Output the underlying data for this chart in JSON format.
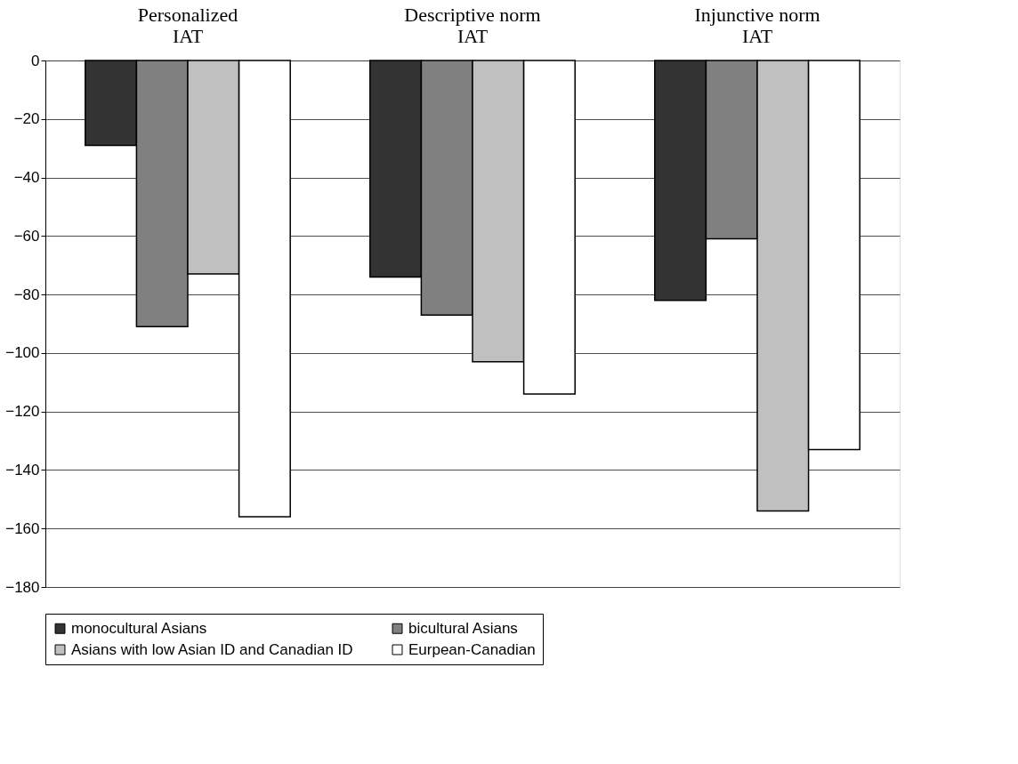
{
  "chart_data": {
    "type": "bar",
    "categories": [
      "Personalized IAT",
      "Descriptive norm IAT",
      "Injunctive norm IAT"
    ],
    "series": [
      {
        "name": "monocultural Asians",
        "color": "#333333",
        "values": [
          -29,
          -74,
          -82
        ]
      },
      {
        "name": "bicultural Asians",
        "color": "#808080",
        "values": [
          -91,
          -87,
          -61
        ]
      },
      {
        "name": "Asians with low Asian ID and Canadian ID",
        "color": "#c0c0c0",
        "values": [
          -73,
          -103,
          -154
        ]
      },
      {
        "name": "Eurpean-Canadian",
        "color": "#ffffff",
        "values": [
          -156,
          -114,
          -133
        ]
      }
    ],
    "ylim": [
      -180,
      0
    ],
    "yticks": [
      -180,
      -160,
      -140,
      -120,
      -100,
      -80,
      -60,
      -40,
      -20,
      0
    ],
    "grid": "y",
    "legend": "bottom"
  }
}
